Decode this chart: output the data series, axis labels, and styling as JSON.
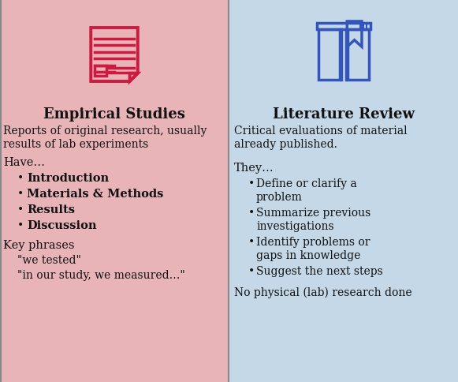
{
  "left_bg": "#E8B4B8",
  "right_bg": "#C5D8E8",
  "left_title": "Empirical Studies",
  "right_title": "Literature Review",
  "left_icon_color": "#CC1A40",
  "right_icon_color": "#3355BB",
  "left_desc": "Reports of original research, usually\nresults of lab experiments",
  "left_have_header": "Have…",
  "left_bullets": [
    "Introduction",
    "Materials & Methods",
    "Results",
    "Discussion"
  ],
  "left_key_header": "Key phrases",
  "left_key_phrases": [
    "\"we tested\"",
    "\"in our study, we measured…\""
  ],
  "right_desc": "Critical evaluations of material\nalready published.",
  "right_they_header": "They…",
  "right_bullets": [
    [
      "Define or clarify a",
      "problem"
    ],
    [
      "Summarize previous",
      "investigations"
    ],
    [
      "Identify problems or",
      "gaps in knowledge"
    ],
    [
      "Suggest the next steps"
    ]
  ],
  "right_footer": "No physical (lab) research done",
  "divider_color": "#888888",
  "text_color": "#111111",
  "figw": 5.81,
  "figh": 4.84,
  "dpi": 100
}
